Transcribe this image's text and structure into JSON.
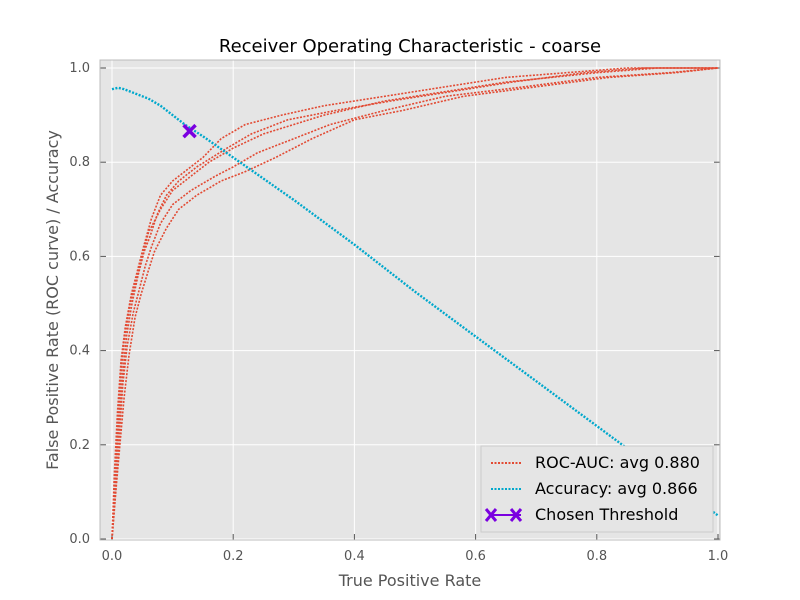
{
  "chart_data": {
    "type": "line",
    "title": "Receiver Operating Characteristic - coarse",
    "xlabel": "True Positive Rate",
    "ylabel": "False Positive Rate (ROC curve) / Accuracy",
    "xlim": [
      0.0,
      1.0
    ],
    "ylim": [
      0.0,
      1.0
    ],
    "xticks": [
      "0.0",
      "0.2",
      "0.4",
      "0.6",
      "0.8",
      "1.0"
    ],
    "yticks": [
      "0.0",
      "0.2",
      "0.4",
      "0.6",
      "0.8",
      "1.0"
    ],
    "grid": true,
    "legend_position": "lower-right",
    "series": [
      {
        "name": "ROC-AUC: avg 0.880",
        "color": "#E24A33",
        "style": "dotted",
        "curves": [
          [
            [
              0.0,
              0.0
            ],
            [
              0.005,
              0.12
            ],
            [
              0.01,
              0.25
            ],
            [
              0.015,
              0.35
            ],
            [
              0.02,
              0.42
            ],
            [
              0.03,
              0.5
            ],
            [
              0.04,
              0.55
            ],
            [
              0.05,
              0.6
            ],
            [
              0.06,
              0.65
            ],
            [
              0.08,
              0.7
            ],
            [
              0.1,
              0.74
            ],
            [
              0.13,
              0.77
            ],
            [
              0.16,
              0.8
            ],
            [
              0.2,
              0.83
            ],
            [
              0.25,
              0.86
            ],
            [
              0.3,
              0.88
            ],
            [
              0.35,
              0.9
            ],
            [
              0.45,
              0.93
            ],
            [
              0.55,
              0.95
            ],
            [
              0.65,
              0.97
            ],
            [
              0.8,
              0.99
            ],
            [
              0.9,
              1.0
            ],
            [
              1.0,
              1.0
            ]
          ],
          [
            [
              0.0,
              0.0
            ],
            [
              0.006,
              0.1
            ],
            [
              0.012,
              0.22
            ],
            [
              0.018,
              0.33
            ],
            [
              0.025,
              0.41
            ],
            [
              0.035,
              0.48
            ],
            [
              0.045,
              0.53
            ],
            [
              0.055,
              0.58
            ],
            [
              0.065,
              0.62
            ],
            [
              0.08,
              0.67
            ],
            [
              0.1,
              0.71
            ],
            [
              0.13,
              0.74
            ],
            [
              0.17,
              0.77
            ],
            [
              0.2,
              0.79
            ],
            [
              0.24,
              0.82
            ],
            [
              0.3,
              0.85
            ],
            [
              0.36,
              0.88
            ],
            [
              0.45,
              0.91
            ],
            [
              0.55,
              0.94
            ],
            [
              0.68,
              0.96
            ],
            [
              0.8,
              0.98
            ],
            [
              0.92,
              0.99
            ],
            [
              1.0,
              1.0
            ]
          ],
          [
            [
              0.0,
              0.0
            ],
            [
              0.004,
              0.14
            ],
            [
              0.009,
              0.27
            ],
            [
              0.015,
              0.38
            ],
            [
              0.022,
              0.45
            ],
            [
              0.032,
              0.52
            ],
            [
              0.042,
              0.57
            ],
            [
              0.052,
              0.62
            ],
            [
              0.065,
              0.68
            ],
            [
              0.08,
              0.73
            ],
            [
              0.1,
              0.76
            ],
            [
              0.12,
              0.78
            ],
            [
              0.15,
              0.81
            ],
            [
              0.18,
              0.85
            ],
            [
              0.22,
              0.88
            ],
            [
              0.28,
              0.9
            ],
            [
              0.35,
              0.92
            ],
            [
              0.45,
              0.94
            ],
            [
              0.55,
              0.96
            ],
            [
              0.65,
              0.98
            ],
            [
              0.75,
              0.99
            ],
            [
              0.85,
              1.0
            ],
            [
              1.0,
              1.0
            ]
          ],
          [
            [
              0.0,
              0.0
            ],
            [
              0.007,
              0.11
            ],
            [
              0.013,
              0.2
            ],
            [
              0.02,
              0.3
            ],
            [
              0.028,
              0.39
            ],
            [
              0.038,
              0.47
            ],
            [
              0.048,
              0.52
            ],
            [
              0.06,
              0.57
            ],
            [
              0.07,
              0.61
            ],
            [
              0.09,
              0.66
            ],
            [
              0.11,
              0.7
            ],
            [
              0.14,
              0.73
            ],
            [
              0.18,
              0.76
            ],
            [
              0.22,
              0.78
            ],
            [
              0.27,
              0.81
            ],
            [
              0.33,
              0.85
            ],
            [
              0.4,
              0.89
            ],
            [
              0.48,
              0.91
            ],
            [
              0.58,
              0.94
            ],
            [
              0.7,
              0.96
            ],
            [
              0.82,
              0.98
            ],
            [
              0.93,
              0.99
            ],
            [
              1.0,
              1.0
            ]
          ],
          [
            [
              0.0,
              0.0
            ],
            [
              0.005,
              0.13
            ],
            [
              0.011,
              0.24
            ],
            [
              0.017,
              0.34
            ],
            [
              0.024,
              0.43
            ],
            [
              0.033,
              0.5
            ],
            [
              0.043,
              0.56
            ],
            [
              0.053,
              0.61
            ],
            [
              0.062,
              0.64
            ],
            [
              0.075,
              0.69
            ],
            [
              0.09,
              0.73
            ],
            [
              0.11,
              0.76
            ],
            [
              0.14,
              0.79
            ],
            [
              0.19,
              0.83
            ],
            [
              0.23,
              0.86
            ],
            [
              0.29,
              0.89
            ],
            [
              0.37,
              0.91
            ],
            [
              0.46,
              0.93
            ],
            [
              0.56,
              0.95
            ],
            [
              0.66,
              0.97
            ],
            [
              0.78,
              0.99
            ],
            [
              0.88,
              1.0
            ],
            [
              1.0,
              1.0
            ]
          ]
        ]
      },
      {
        "name": "Accuracy: avg 0.866",
        "color": "#00A8CC",
        "style": "dotted",
        "points": [
          [
            0.0,
            0.955
          ],
          [
            0.01,
            0.958
          ],
          [
            0.02,
            0.955
          ],
          [
            0.04,
            0.945
          ],
          [
            0.06,
            0.935
          ],
          [
            0.08,
            0.92
          ],
          [
            0.1,
            0.9
          ],
          [
            0.12,
            0.88
          ],
          [
            0.15,
            0.855
          ],
          [
            0.2,
            0.81
          ],
          [
            0.3,
            0.72
          ],
          [
            0.4,
            0.625
          ],
          [
            0.5,
            0.525
          ],
          [
            0.6,
            0.43
          ],
          [
            0.7,
            0.335
          ],
          [
            0.8,
            0.24
          ],
          [
            0.9,
            0.145
          ],
          [
            1.0,
            0.05
          ]
        ]
      },
      {
        "name": "Chosen Threshold",
        "color": "#7B00E0",
        "marker": "x",
        "points": [
          [
            0.128,
            0.866
          ]
        ]
      }
    ]
  }
}
